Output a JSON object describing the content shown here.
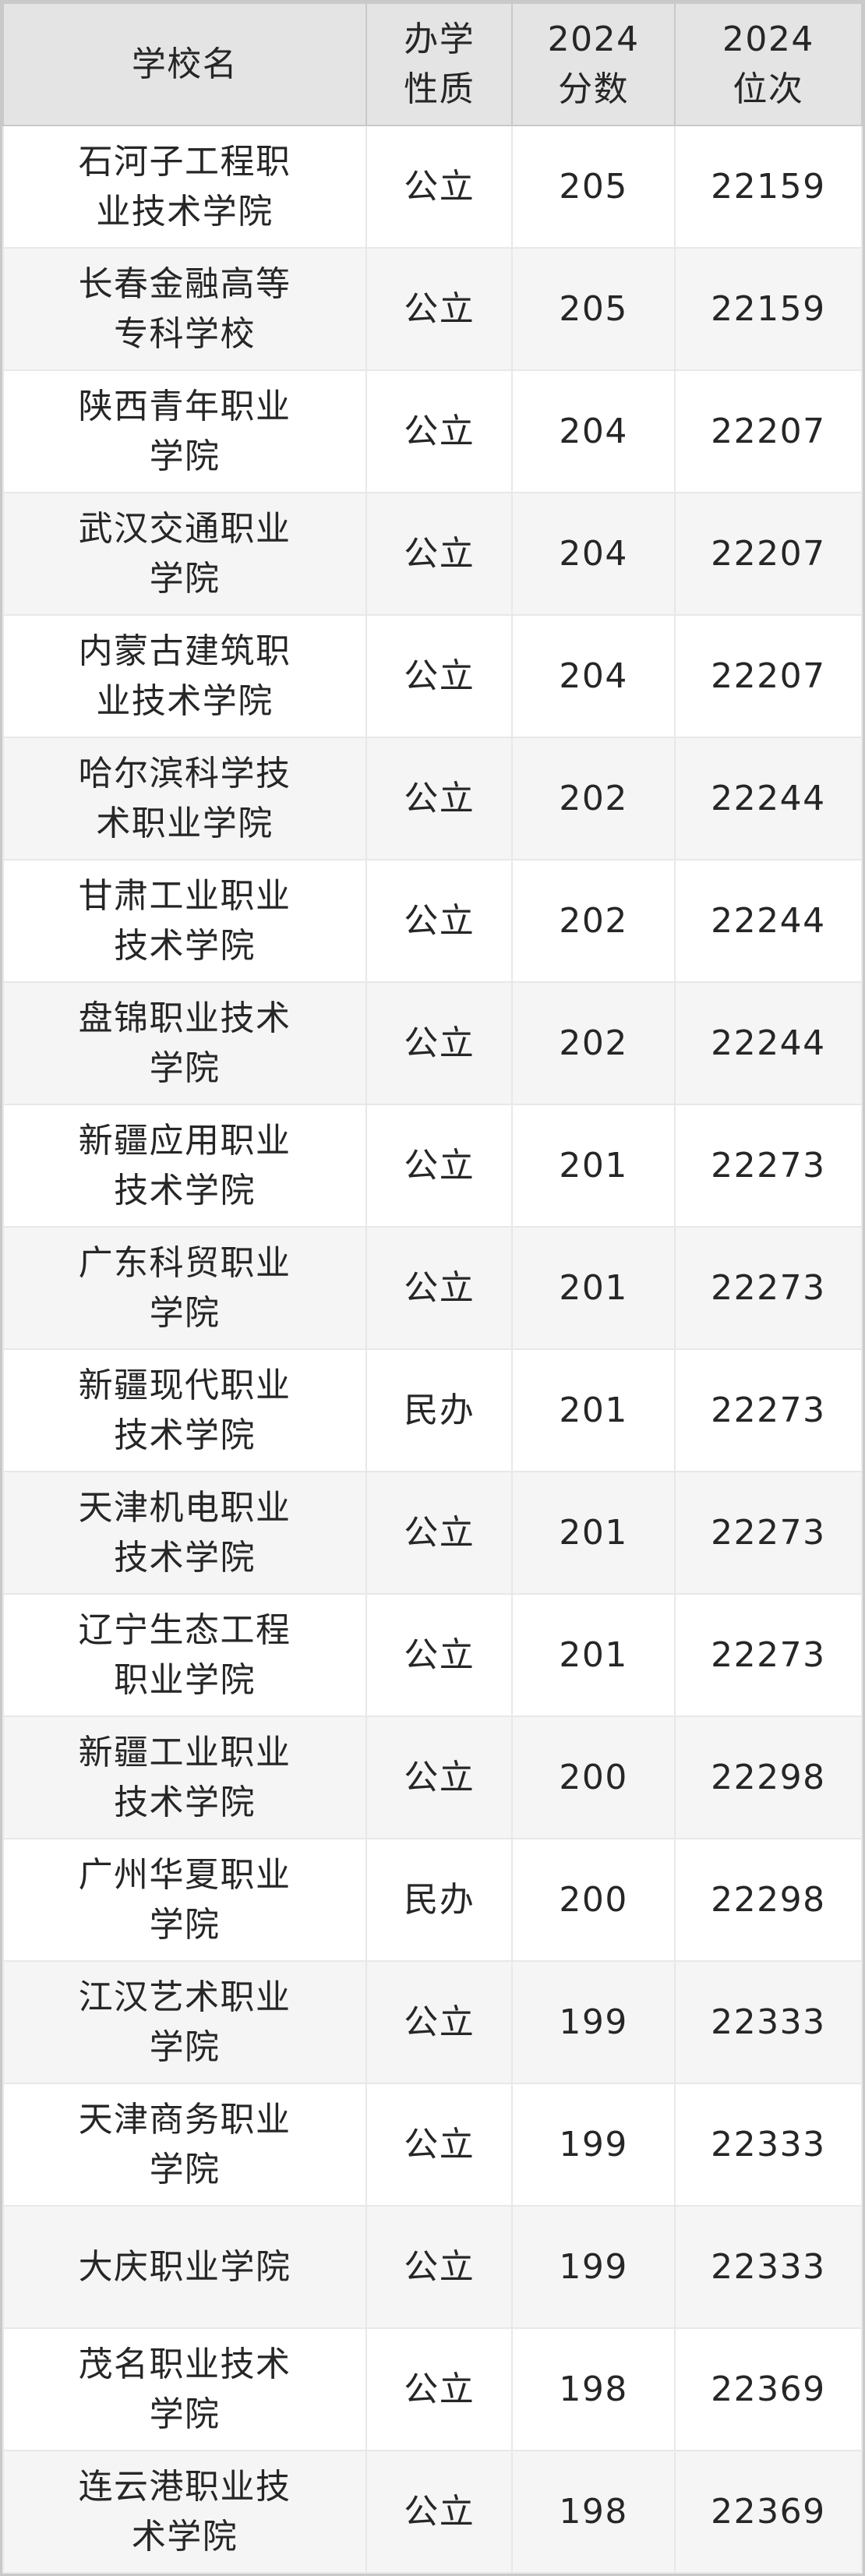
{
  "table": {
    "columns": [
      "学校名",
      "办学性质",
      "2024分数",
      "2024位次"
    ],
    "rows": [
      {
        "name": "石河子工程职业技术学院",
        "type": "公立",
        "score": "205",
        "rank": "22159"
      },
      {
        "name": "长春金融高等专科学校",
        "type": "公立",
        "score": "205",
        "rank": "22159"
      },
      {
        "name": "陕西青年职业学院",
        "type": "公立",
        "score": "204",
        "rank": "22207"
      },
      {
        "name": "武汉交通职业学院",
        "type": "公立",
        "score": "204",
        "rank": "22207"
      },
      {
        "name": "内蒙古建筑职业技术学院",
        "type": "公立",
        "score": "204",
        "rank": "22207"
      },
      {
        "name": "哈尔滨科学技术职业学院",
        "type": "公立",
        "score": "202",
        "rank": "22244"
      },
      {
        "name": "甘肃工业职业技术学院",
        "type": "公立",
        "score": "202",
        "rank": "22244"
      },
      {
        "name": "盘锦职业技术学院",
        "type": "公立",
        "score": "202",
        "rank": "22244"
      },
      {
        "name": "新疆应用职业技术学院",
        "type": "公立",
        "score": "201",
        "rank": "22273"
      },
      {
        "name": "广东科贸职业学院",
        "type": "公立",
        "score": "201",
        "rank": "22273"
      },
      {
        "name": "新疆现代职业技术学院",
        "type": "民办",
        "score": "201",
        "rank": "22273"
      },
      {
        "name": "天津机电职业技术学院",
        "type": "公立",
        "score": "201",
        "rank": "22273"
      },
      {
        "name": "辽宁生态工程职业学院",
        "type": "公立",
        "score": "201",
        "rank": "22273"
      },
      {
        "name": "新疆工业职业技术学院",
        "type": "公立",
        "score": "200",
        "rank": "22298"
      },
      {
        "name": "广州华夏职业学院",
        "type": "民办",
        "score": "200",
        "rank": "22298"
      },
      {
        "name": "江汉艺术职业学院",
        "type": "公立",
        "score": "199",
        "rank": "22333"
      },
      {
        "name": "天津商务职业学院",
        "type": "公立",
        "score": "199",
        "rank": "22333"
      },
      {
        "name": "大庆职业学院",
        "type": "公立",
        "score": "199",
        "rank": "22333"
      },
      {
        "name": "茂名职业技术学院",
        "type": "公立",
        "score": "198",
        "rank": "22369"
      },
      {
        "name": "连云港职业技术学院",
        "type": "公立",
        "score": "198",
        "rank": "22369"
      }
    ]
  },
  "colors": {
    "frame_border": "#c9c9c9",
    "header_bg": "#e4e4e4",
    "header_grid": "#c9c9c9",
    "body_grid": "#e8e8e8",
    "alt_row_bg": "#f5f5f5",
    "row_bg": "#ffffff",
    "text": "#262626"
  }
}
